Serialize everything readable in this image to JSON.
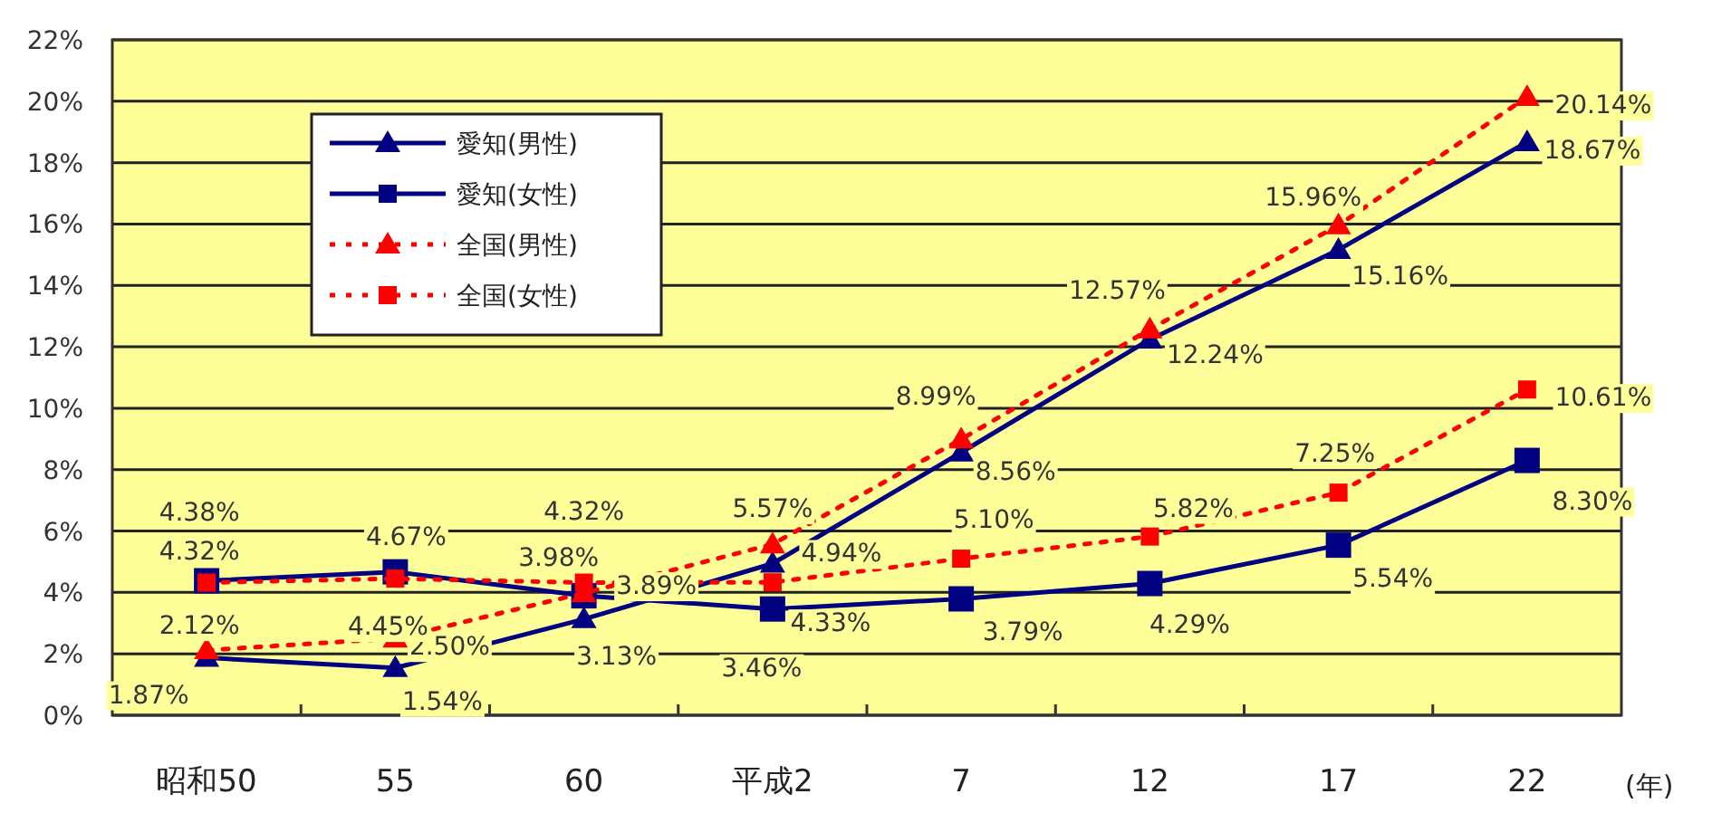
{
  "chart_data": {
    "type": "line",
    "categories": [
      "昭和50",
      "55",
      "60",
      "平成2",
      "7",
      "12",
      "17",
      "22"
    ],
    "xlabel": "(年)",
    "ylim": [
      0,
      22
    ],
    "yticks": [
      {
        "value": 0,
        "label": "0%"
      },
      {
        "value": 2,
        "label": "2%"
      },
      {
        "value": 4,
        "label": "4%"
      },
      {
        "value": 6,
        "label": "6%"
      },
      {
        "value": 8,
        "label": "8%"
      },
      {
        "value": 10,
        "label": "10%"
      },
      {
        "value": 12,
        "label": "12%"
      },
      {
        "value": 14,
        "label": "14%"
      },
      {
        "value": 16,
        "label": "16%"
      },
      {
        "value": 18,
        "label": "18%"
      },
      {
        "value": 20,
        "label": "20%"
      },
      {
        "value": 22,
        "label": "22%"
      }
    ],
    "grid": "y",
    "legend": "top left",
    "series": [
      {
        "name": "愛知(男性)",
        "color": "#000080",
        "marker": "triangle",
        "line_style": "solid",
        "values": [
          1.87,
          1.54,
          3.13,
          4.94,
          8.56,
          12.24,
          15.16,
          18.67
        ],
        "value_labels": [
          "1.87%",
          "1.54%",
          "3.13%",
          "4.94%",
          "8.56%",
          "12.24%",
          "15.16%",
          "18.67%"
        ]
      },
      {
        "name": "愛知(女性)",
        "color": "#000080",
        "marker": "square",
        "line_style": "solid",
        "values": [
          4.38,
          4.67,
          3.89,
          3.46,
          3.79,
          4.29,
          5.54,
          8.3
        ],
        "value_labels": [
          "4.38%",
          "4.67%",
          "3.89%",
          "3.46%",
          "3.79%",
          "4.29%",
          "5.54%",
          "8.30%"
        ]
      },
      {
        "name": "全国(男性)",
        "color": "#ff0000",
        "marker": "triangle",
        "line_style": "dotted",
        "values": [
          2.12,
          2.5,
          3.98,
          5.57,
          8.99,
          12.57,
          15.96,
          20.14
        ],
        "value_labels": [
          "2.12%",
          "2.50%",
          "3.98%",
          "5.57%",
          "8.99%",
          "12.57%",
          "15.96%",
          "20.14%"
        ]
      },
      {
        "name": "全国(女性)",
        "color": "#ff0000",
        "marker": "square",
        "line_style": "dotted",
        "values": [
          4.32,
          4.45,
          4.32,
          4.33,
          5.1,
          5.82,
          7.25,
          10.61
        ],
        "value_labels": [
          "4.32%",
          "4.45%",
          "4.32%",
          "4.33%",
          "5.10%",
          "5.82%",
          "7.25%",
          "10.61%"
        ]
      }
    ]
  }
}
